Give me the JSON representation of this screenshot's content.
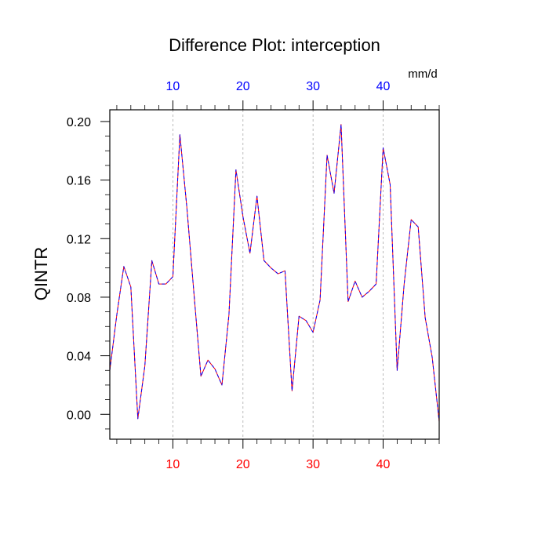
{
  "chart_data": {
    "type": "line",
    "title": "Difference Plot: interception",
    "ylabel": "QINTR",
    "units": "mm/d",
    "xlim": [
      1,
      48
    ],
    "ylim": [
      -0.017,
      0.208
    ],
    "grid": "vertical dashed at major x ticks",
    "x_ticks": [
      10,
      20,
      30,
      40
    ],
    "x_tick_labels": [
      "10",
      "20",
      "30",
      "40"
    ],
    "y_ticks": [
      0.0,
      0.04,
      0.08,
      0.12,
      0.16,
      0.2
    ],
    "y_tick_labels": [
      "0.00",
      "0.04",
      "0.08",
      "0.12",
      "0.16",
      "0.20"
    ],
    "colors": {
      "series_a": "#ff0000",
      "series_b": "#0000ff",
      "bottom_tick_labels": "#ff0000",
      "top_tick_labels": "#0000ff",
      "grid": "#aaaaaa"
    },
    "series": [
      {
        "x": [
          1,
          2,
          3,
          4,
          5,
          6,
          7,
          8,
          9,
          10,
          11,
          12,
          13,
          14,
          15,
          16,
          17,
          18,
          19,
          20,
          21,
          22,
          23,
          24,
          25,
          26,
          27,
          28,
          29,
          30,
          31,
          32,
          33,
          34,
          35,
          36,
          37,
          38,
          39,
          40,
          41,
          42,
          43,
          44,
          45,
          46,
          47,
          48
        ],
        "values": [
          0.03,
          0.068,
          0.101,
          0.087,
          -0.003,
          0.033,
          0.105,
          0.089,
          0.089,
          0.094,
          0.191,
          0.141,
          0.083,
          0.026,
          0.037,
          0.031,
          0.02,
          0.068,
          0.167,
          0.135,
          0.11,
          0.149,
          0.105,
          0.1,
          0.096,
          0.098,
          0.016,
          0.067,
          0.064,
          0.056,
          0.078,
          0.177,
          0.151,
          0.198,
          0.077,
          0.091,
          0.08,
          0.084,
          0.089,
          0.182,
          0.157,
          0.03,
          0.089,
          0.133,
          0.128,
          0.066,
          0.039,
          -0.005
        ]
      },
      {
        "x": [
          1,
          2,
          3,
          4,
          5,
          6,
          7,
          8,
          9,
          10,
          11,
          12,
          13,
          14,
          15,
          16,
          17,
          18,
          19,
          20,
          21,
          22,
          23,
          24,
          25,
          26,
          27,
          28,
          29,
          30,
          31,
          32,
          33,
          34,
          35,
          36,
          37,
          38,
          39,
          40,
          41,
          42,
          43,
          44,
          45,
          46,
          47,
          48
        ],
        "values": [
          0.03,
          0.068,
          0.101,
          0.087,
          -0.003,
          0.033,
          0.105,
          0.089,
          0.089,
          0.094,
          0.191,
          0.141,
          0.083,
          0.026,
          0.037,
          0.031,
          0.02,
          0.068,
          0.167,
          0.135,
          0.11,
          0.149,
          0.105,
          0.1,
          0.096,
          0.098,
          0.016,
          0.067,
          0.064,
          0.056,
          0.078,
          0.177,
          0.151,
          0.198,
          0.077,
          0.091,
          0.08,
          0.084,
          0.089,
          0.182,
          0.157,
          0.03,
          0.089,
          0.133,
          0.128,
          0.066,
          0.039,
          -0.005
        ]
      }
    ]
  }
}
